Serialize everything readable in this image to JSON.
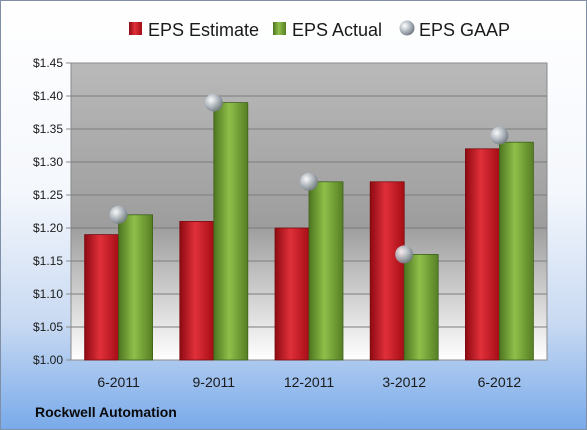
{
  "chart_data": {
    "type": "bar",
    "categories": [
      "6-2011",
      "9-2011",
      "12-2011",
      "3-2012",
      "6-2012"
    ],
    "series": [
      {
        "name": "EPS Estimate",
        "values": [
          1.19,
          1.21,
          1.2,
          1.27,
          1.32
        ],
        "color": "#c0121c",
        "kind": "bar"
      },
      {
        "name": "EPS Actual",
        "values": [
          1.22,
          1.39,
          1.27,
          1.16,
          1.33
        ],
        "color": "#6b9a2a",
        "kind": "bar"
      },
      {
        "name": "EPS GAAP",
        "values": [
          1.22,
          1.39,
          1.27,
          1.16,
          1.34
        ],
        "color": "#9aa3ad",
        "kind": "marker"
      }
    ],
    "ylim": [
      1.0,
      1.45
    ],
    "yticks": [
      "$1.00",
      "$1.05",
      "$1.10",
      "$1.15",
      "$1.20",
      "$1.25",
      "$1.30",
      "$1.35",
      "$1.40",
      "$1.45"
    ],
    "ytick_values": [
      1.0,
      1.05,
      1.1,
      1.15,
      1.2,
      1.25,
      1.3,
      1.35,
      1.4,
      1.45
    ],
    "legend_position": "top",
    "grid": true,
    "title": "",
    "xlabel": "",
    "ylabel": ""
  },
  "footer": {
    "company": "Rockwell Automation"
  }
}
